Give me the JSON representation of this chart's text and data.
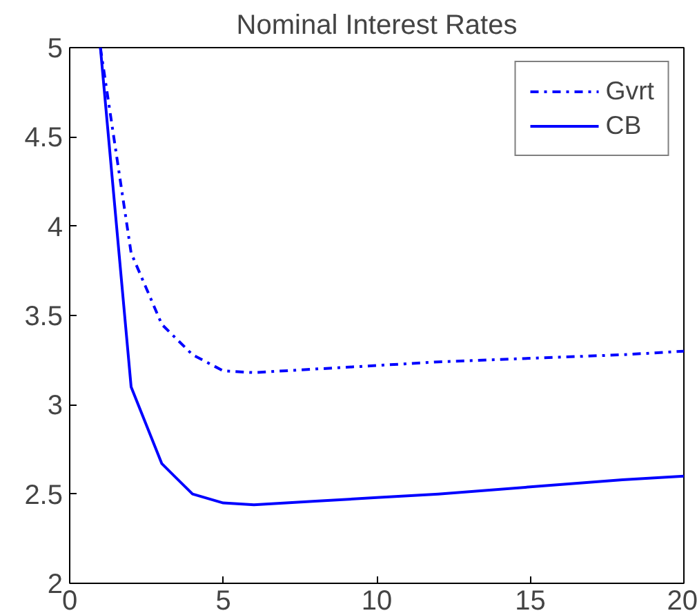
{
  "chart_data": {
    "type": "line",
    "title": "Nominal Interest Rates",
    "x": [
      1,
      2,
      3,
      4,
      5,
      6,
      8,
      10,
      12,
      15,
      18,
      20
    ],
    "series": [
      {
        "name": "Gvrt",
        "color": "#0000ff",
        "line_style": "dashdot",
        "values": [
          5.0,
          3.85,
          3.45,
          3.28,
          3.19,
          3.18,
          3.2,
          3.22,
          3.24,
          3.26,
          3.28,
          3.3
        ]
      },
      {
        "name": "CB",
        "color": "#0000ff",
        "line_style": "solid",
        "values": [
          5.0,
          3.1,
          2.67,
          2.5,
          2.45,
          2.44,
          2.46,
          2.48,
          2.5,
          2.54,
          2.58,
          2.6
        ]
      }
    ],
    "xlim": [
      0,
      20
    ],
    "ylim": [
      2,
      5
    ],
    "xticks": [
      0,
      5,
      10,
      15,
      20
    ],
    "yticks": [
      2,
      2.5,
      3,
      3.5,
      4,
      4.5,
      5
    ],
    "grid": false,
    "legend": "top right",
    "marker": "none"
  }
}
